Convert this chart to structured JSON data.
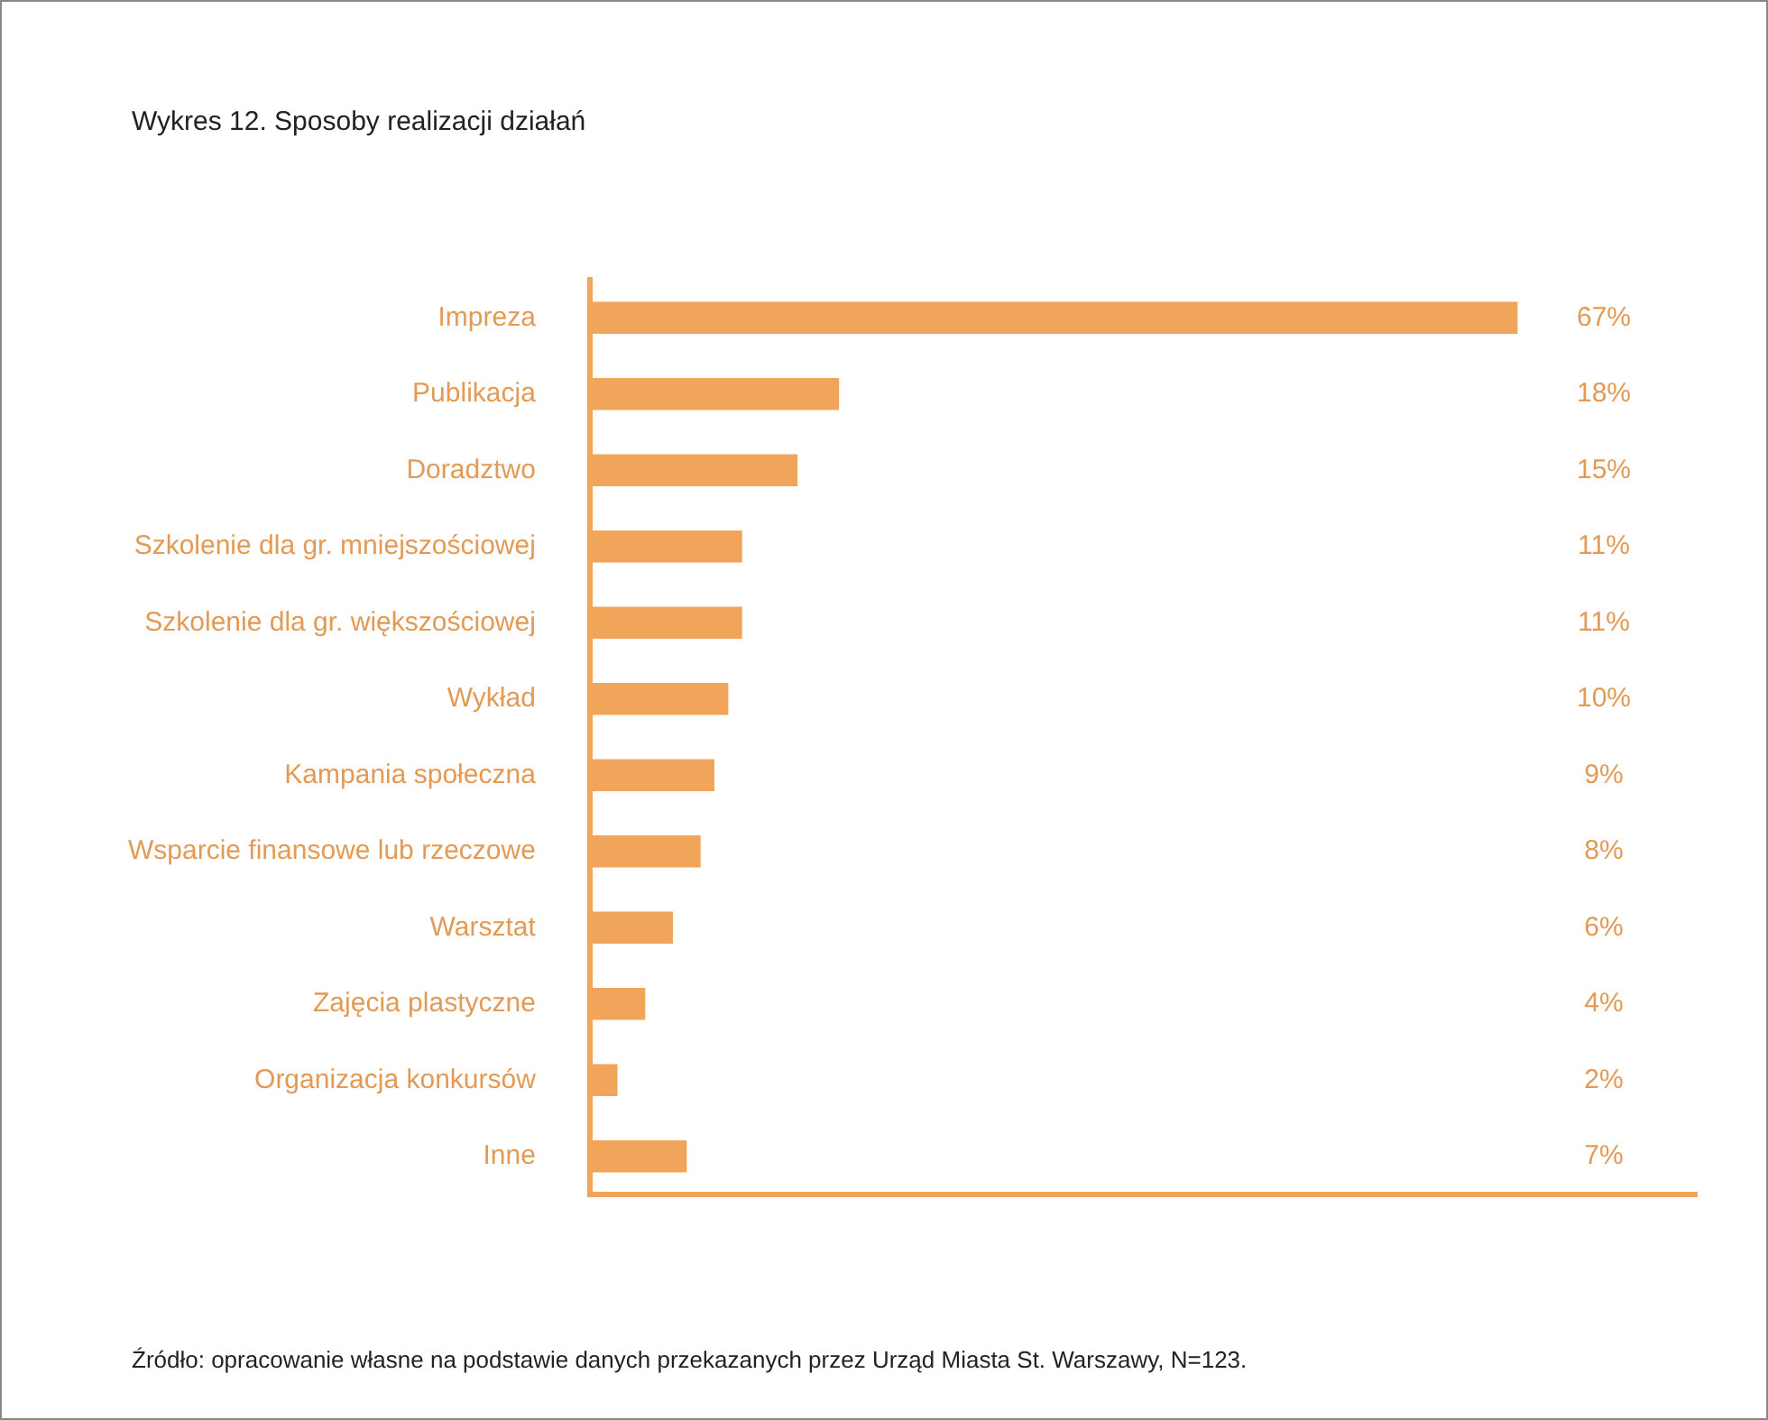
{
  "chart_data": {
    "type": "bar",
    "orientation": "horizontal",
    "title": "Wykres 12. Sposoby realizacji działań",
    "categories": [
      "Impreza",
      "Publikacja",
      "Doradztwo",
      "Szkolenie dla gr. mniejszościowej",
      "Szkolenie dla gr. większościowej",
      "Wykład",
      "Kampania społeczna",
      "Wsparcie finansowe lub rzeczowe",
      "Warsztat",
      "Zajęcia plastyczne",
      "Organizacja konkursów",
      "Inne"
    ],
    "values": [
      67,
      18,
      15,
      11,
      11,
      10,
      9,
      8,
      6,
      4,
      2,
      7
    ],
    "value_labels": [
      "67%",
      "18%",
      "15%",
      "11%",
      "11%",
      "10%",
      "9%",
      "8%",
      "6%",
      "4%",
      "2%",
      "7%"
    ],
    "color": "#f0a55a",
    "grid": false,
    "legend": false,
    "tick_labels": "y",
    "annotations": [
      "Źródło: opracowanie własne na podstawie danych przekazanych przez Urząd Miasta St. Warszawy, N=123."
    ]
  }
}
